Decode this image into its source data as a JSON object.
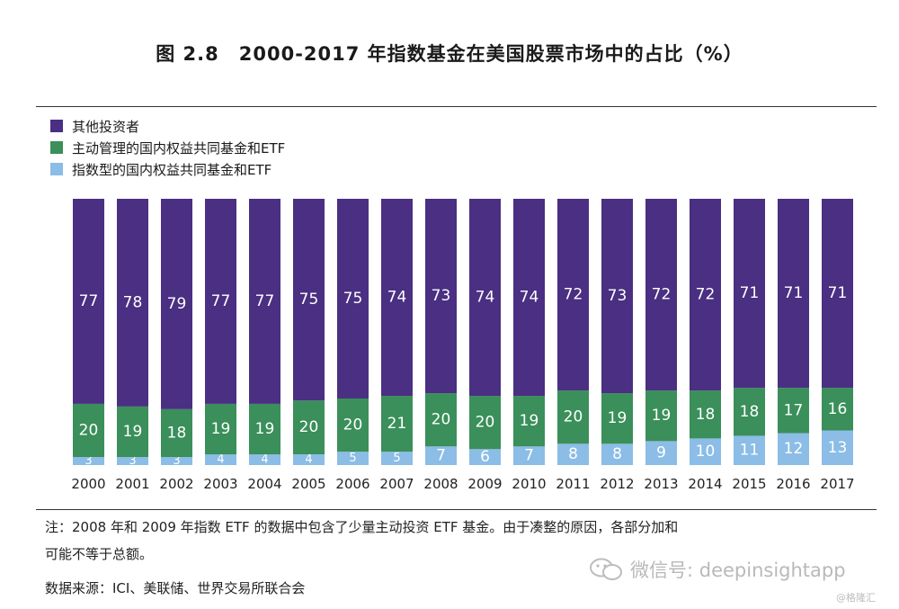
{
  "title": "图 2.8　2000-2017 年指数基金在美国股票市场中的占比（%）",
  "legend": [
    {
      "label": "其他投资者",
      "color": "#4a2f82"
    },
    {
      "label": "主动管理的国内权益共同基金和ETF",
      "color": "#3a8f5a"
    },
    {
      "label": "指数型的国内权益共同基金和ETF",
      "color": "#8bbde6"
    }
  ],
  "chart_data": {
    "type": "bar",
    "stacked": true,
    "categories": [
      "2000",
      "2001",
      "2002",
      "2003",
      "2004",
      "2005",
      "2006",
      "2007",
      "2008",
      "2009",
      "2010",
      "2011",
      "2012",
      "2013",
      "2014",
      "2015",
      "2016",
      "2017"
    ],
    "series": [
      {
        "name": "指数型的国内权益共同基金和ETF",
        "color": "#8bbde6",
        "values": [
          3,
          3,
          3,
          4,
          4,
          4,
          5,
          5,
          7,
          6,
          7,
          8,
          8,
          9,
          10,
          11,
          12,
          13
        ]
      },
      {
        "name": "主动管理的国内权益共同基金和ETF",
        "color": "#3a8f5a",
        "values": [
          20,
          19,
          18,
          19,
          19,
          20,
          20,
          21,
          20,
          20,
          19,
          20,
          19,
          19,
          18,
          18,
          17,
          16
        ]
      },
      {
        "name": "其他投资者",
        "color": "#4a2f82",
        "values": [
          77,
          78,
          79,
          77,
          77,
          75,
          75,
          74,
          73,
          74,
          74,
          72,
          73,
          72,
          72,
          71,
          71,
          71
        ]
      }
    ],
    "title": "2000-2017 年指数基金在美国股票市场中的占比（%）",
    "xlabel": "",
    "ylabel": "",
    "ylim": [
      0,
      100
    ]
  },
  "notes": {
    "line1": "注：2008 年和 2009 年指数 ETF 的数据中包含了少量主动投资 ETF 基金。由于凑整的原因，各部分加和",
    "line2": "可能不等于总额。",
    "source": "数据来源：ICI、美联储、世界交易所联合会"
  },
  "watermark": {
    "text": "微信号: deepinsightapp",
    "corner": "@格隆汇"
  }
}
